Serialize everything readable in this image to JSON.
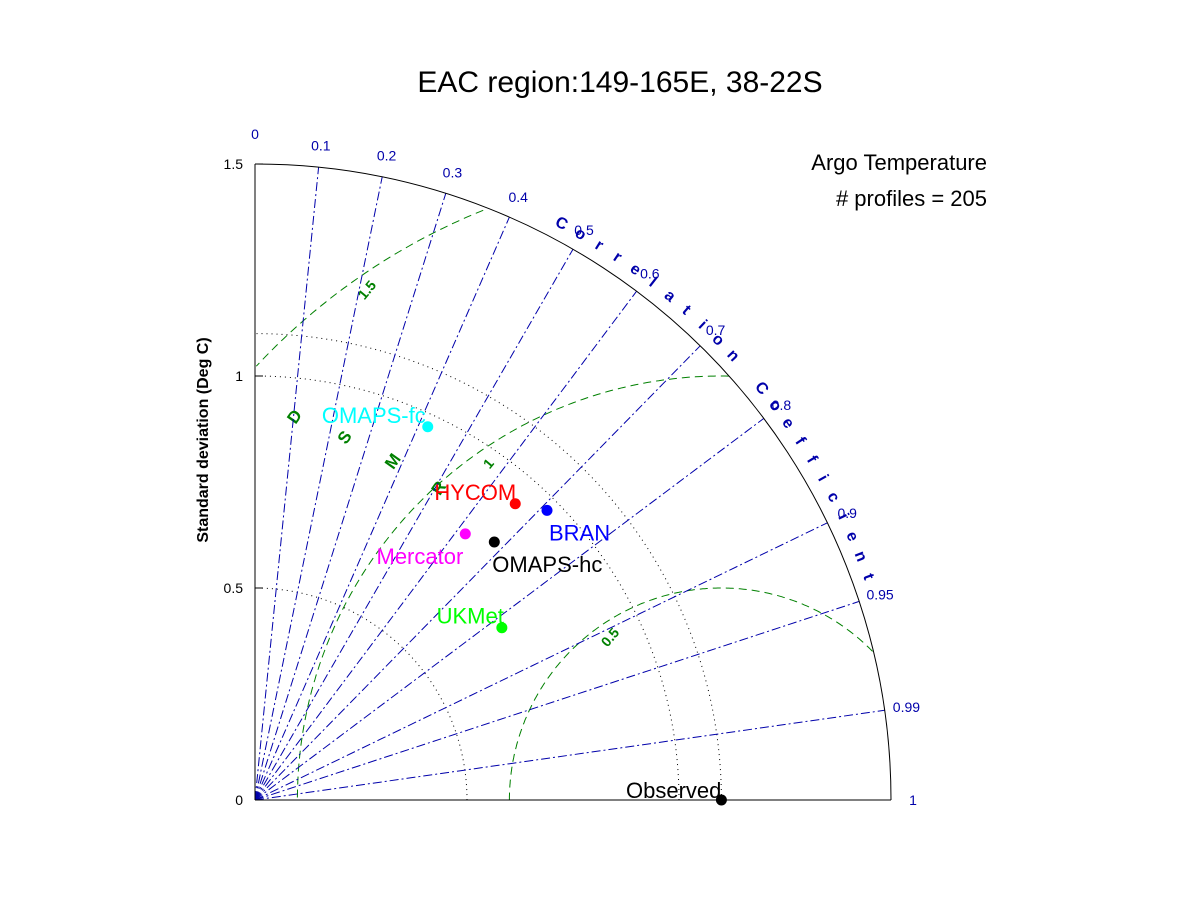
{
  "chart_data": {
    "type": "taylor_diagram",
    "title": "EAC region:149-165E, 38-22S",
    "annotation": {
      "line1": "Argo Temperature",
      "line2": "# profiles = 205"
    },
    "ylabel": "Standard deviation (Deg C)",
    "sd_range": [
      0,
      1.5
    ],
    "sd_ticks": [
      0,
      0.5,
      1,
      1.5
    ],
    "sd_tick_labels": [
      "0",
      "0.5",
      "1",
      "1.5"
    ],
    "correlation_label": "Correlation Coefficient",
    "correlation_ticks": [
      0,
      0.1,
      0.2,
      0.3,
      0.4,
      0.5,
      0.6,
      0.7,
      0.8,
      0.9,
      0.95,
      0.99,
      1
    ],
    "correlation_tick_labels": [
      "0",
      "0.1",
      "0.2",
      "0.3",
      "0.4",
      "0.5",
      "0.6",
      "0.7",
      "0.8",
      "0.9",
      "0.95",
      "0.99",
      "1"
    ],
    "rmsd_label": "RMSD",
    "rmsd_contours": [
      0.5,
      1,
      1.5
    ],
    "rmsd_contour_labels": [
      "0.5",
      "1",
      "1.5"
    ],
    "reference": {
      "name": "Observed",
      "std": 1.1,
      "correlation": 1
    },
    "models": [
      {
        "name": "OMAPS-fc",
        "std": 0.97,
        "correlation": 0.42,
        "color": "#00ffff"
      },
      {
        "name": "HYCOM",
        "std": 0.93,
        "correlation": 0.66,
        "color": "#ff0000"
      },
      {
        "name": "BRAN",
        "std": 0.97,
        "correlation": 0.71,
        "color": "#0000ff"
      },
      {
        "name": "Mercator",
        "std": 0.8,
        "correlation": 0.62,
        "color": "#ff00ff"
      },
      {
        "name": "OMAPS-hc",
        "std": 0.83,
        "correlation": 0.68,
        "color": "#000000"
      },
      {
        "name": "UKMet",
        "std": 0.71,
        "correlation": 0.82,
        "color": "#00ff00"
      }
    ],
    "colors": {
      "correlation": "#0000aa",
      "rmsd": "#008000",
      "axis": "#000000"
    }
  }
}
